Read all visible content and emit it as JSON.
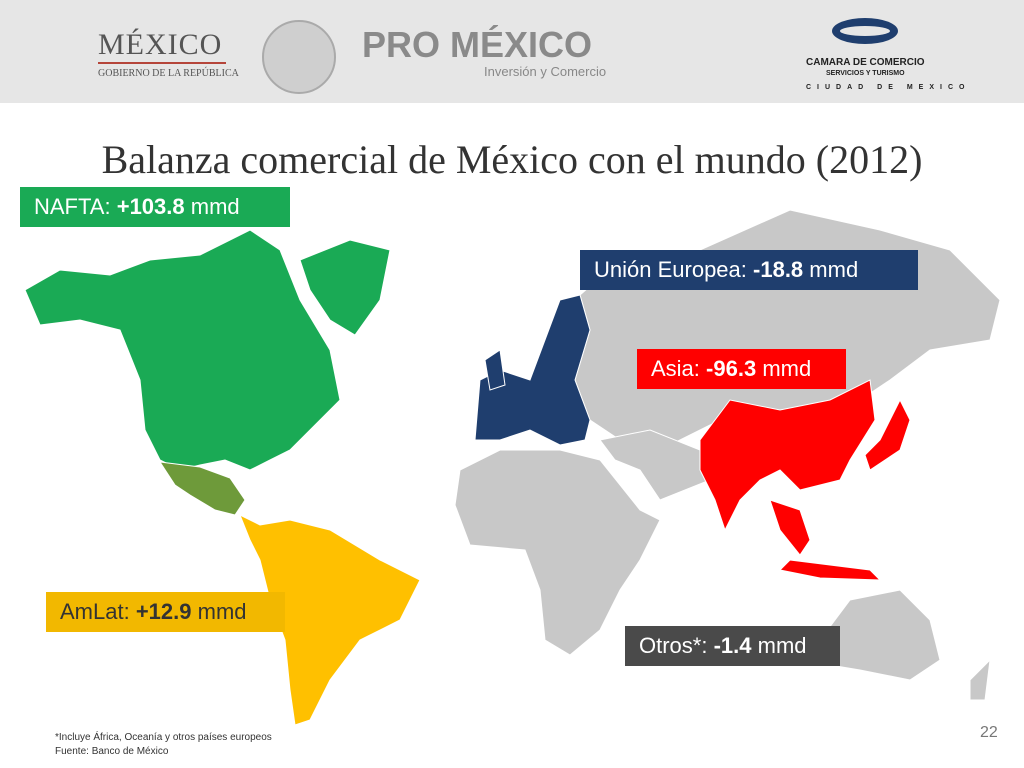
{
  "header": {
    "gov_logo": "MÉXICO",
    "gov_subtitle": "GOBIERNO DE LA REPÚBLICA",
    "promexico": "PRO MÉXICO",
    "promexico_tagline": "Inversión y Comercio",
    "chamber_name": "CAMARA DE COMERCIO",
    "chamber_sub": "SERVICIOS Y TURISMO",
    "chamber_city": "CIUDAD DE MEXICO"
  },
  "title": "Balanza comercial de México con el mundo (2012)",
  "regions": [
    {
      "name": "NAFTA:",
      "value": "+103.8",
      "unit": "mmd"
    },
    {
      "name": "Unión Europea:",
      "value": "-18.8",
      "unit": "mmd"
    },
    {
      "name": "Asia:",
      "value": "-96.3",
      "unit": "mmd"
    },
    {
      "name": "AmLat:",
      "value": "+12.9",
      "unit": "mmd"
    },
    {
      "name": "Otros*:",
      "value": "-1.4",
      "unit": "mmd"
    }
  ],
  "footnotes": [
    "*Incluye África, Oceanía y otros países europeos",
    "Fuente: Banco de México"
  ],
  "page_number": "22"
}
